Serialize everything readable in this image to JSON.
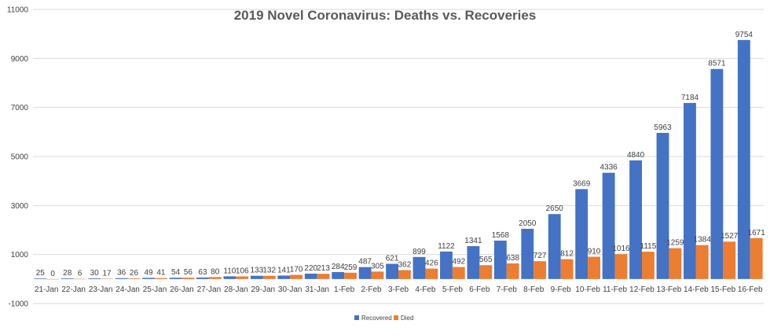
{
  "chart_data": {
    "type": "bar",
    "title": "2019 Novel Coronavirus: Deaths vs. Recoveries",
    "xlabel": "",
    "ylabel": "",
    "ylim": [
      -1000,
      11000
    ],
    "yticks": [
      -1000,
      1000,
      3000,
      5000,
      7000,
      9000,
      11000
    ],
    "grid": true,
    "legend_position": "bottom",
    "categories": [
      "21-Jan",
      "22-Jan",
      "23-Jan",
      "24-Jan",
      "25-Jan",
      "26-Jan",
      "27-Jan",
      "28-Jan",
      "29-Jan",
      "30-Jan",
      "31-Jan",
      "1-Feb",
      "2-Feb",
      "3-Feb",
      "4-Feb",
      "5-Feb",
      "6-Feb",
      "7-Feb",
      "8-Feb",
      "9-Feb",
      "10-Feb",
      "11-Feb",
      "12-Feb",
      "13-Feb",
      "14-Feb",
      "15-Feb",
      "16-Feb"
    ],
    "series": [
      {
        "name": "Recovered",
        "color": "#4472c4",
        "values": [
          25,
          28,
          30,
          36,
          49,
          54,
          63,
          110,
          133,
          141,
          220,
          284,
          487,
          621,
          899,
          1122,
          1341,
          1568,
          2050,
          2650,
          3669,
          4336,
          4840,
          5963,
          7184,
          8571,
          9754
        ]
      },
      {
        "name": "Died",
        "color": "#ed7d31",
        "values": [
          0,
          6,
          17,
          26,
          41,
          56,
          80,
          106,
          132,
          170,
          213,
          259,
          305,
          362,
          426,
          492,
          565,
          638,
          727,
          812,
          910,
          1016,
          1115,
          1259,
          1384,
          1527,
          1671
        ]
      }
    ]
  }
}
